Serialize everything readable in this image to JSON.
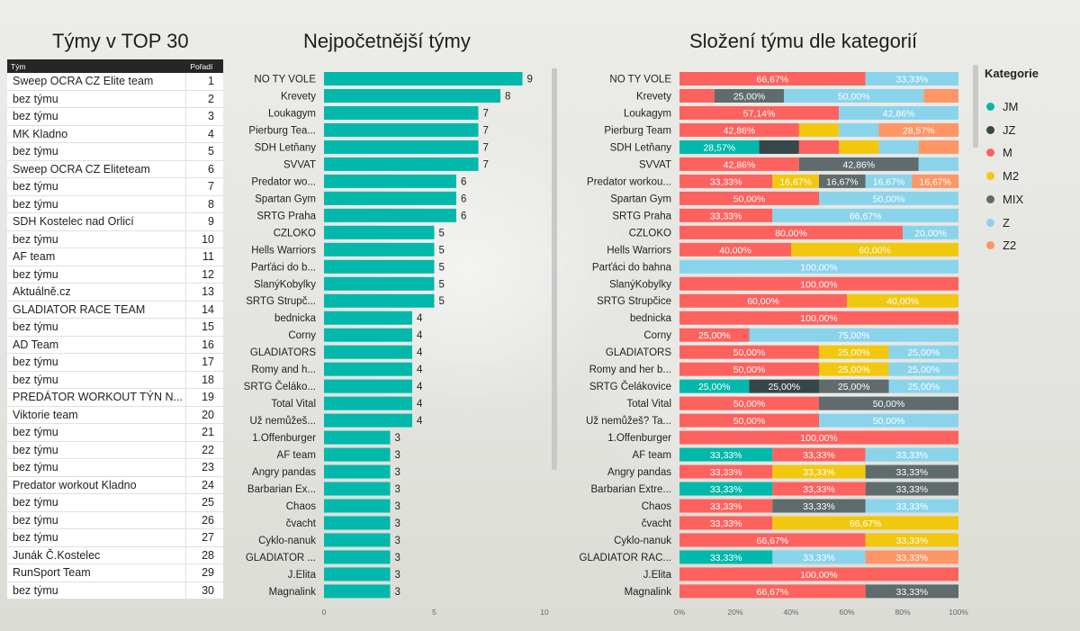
{
  "titles": {
    "table": "Týmy v TOP 30",
    "bar": "Nejpočetnější týmy",
    "stacked": "Složení týmu dle kategorií"
  },
  "table": {
    "col_team": "Tým",
    "col_rank": "Pořadí",
    "rows": [
      {
        "team": "Sweep OCRA CZ Elite team",
        "rank": "1"
      },
      {
        "team": "bez týmu",
        "rank": "2"
      },
      {
        "team": "bez týmu",
        "rank": "3"
      },
      {
        "team": "MK Kladno",
        "rank": "4"
      },
      {
        "team": "bez týmu",
        "rank": "5"
      },
      {
        "team": "Sweep OCRA CZ Eliteteam",
        "rank": "6"
      },
      {
        "team": "bez týmu",
        "rank": "7"
      },
      {
        "team": "bez týmu",
        "rank": "8"
      },
      {
        "team": "SDH Kostelec nad Orlicí",
        "rank": "9"
      },
      {
        "team": "bez týmu",
        "rank": "10"
      },
      {
        "team": "AF team",
        "rank": "11"
      },
      {
        "team": "bez týmu",
        "rank": "12"
      },
      {
        "team": "Aktuálně.cz",
        "rank": "13"
      },
      {
        "team": "GLADIATOR RACE TEAM",
        "rank": "14"
      },
      {
        "team": "bez týmu",
        "rank": "15"
      },
      {
        "team": "AD Team",
        "rank": "16"
      },
      {
        "team": "bez týmu",
        "rank": "17"
      },
      {
        "team": "bez týmu",
        "rank": "18"
      },
      {
        "team": "PREDÁTOR WORKOUT TÝN N...",
        "rank": "19"
      },
      {
        "team": "Viktorie team",
        "rank": "20"
      },
      {
        "team": "bez týmu",
        "rank": "21"
      },
      {
        "team": "bez týmu",
        "rank": "22"
      },
      {
        "team": "bez týmu",
        "rank": "23"
      },
      {
        "team": "Predator workout Kladno",
        "rank": "24"
      },
      {
        "team": "bez týmu",
        "rank": "25"
      },
      {
        "team": "bez týmu",
        "rank": "26"
      },
      {
        "team": "bez týmu",
        "rank": "27"
      },
      {
        "team": "Junák Č.Kostelec",
        "rank": "28"
      },
      {
        "team": "RunSport Team",
        "rank": "29"
      },
      {
        "team": "bez týmu",
        "rank": "30"
      }
    ]
  },
  "colors": {
    "JM": "#01B8AA",
    "JZ": "#374649",
    "M": "#FD625E",
    "M2": "#F2C80F",
    "MIX": "#5F6B6D",
    "Z": "#8AD4EB",
    "Z2": "#FE9666",
    "bar": "#01B8AA"
  },
  "chart_data": [
    {
      "type": "bar",
      "orientation": "horizontal",
      "title": "Nejpočetnější týmy",
      "categories": [
        "NO TY VOLE",
        "Krevety",
        "Loukagym",
        "Pierburg Tea...",
        "SDH Letňany",
        "SVVAT",
        "Predator wo...",
        "Spartan Gym",
        "SRTG Praha",
        "CZLOKO",
        "Hells Warriors",
        "Parťáci do b...",
        "SlanýKobylky",
        "SRTG Strupč...",
        "bednicka",
        "Corny",
        "GLADIATORS",
        "Romy and h...",
        "SRTG Čeláko...",
        "Total Vital",
        "Už nemůžeš...",
        "1.Offenburger",
        "AF team",
        "Angry pandas",
        "Barbarian Ex...",
        "Chaos",
        "čvacht",
        "Cyklo-nanuk",
        "GLADIATOR ...",
        "J.Elita",
        "Magnalink"
      ],
      "values": [
        9,
        8,
        7,
        7,
        7,
        7,
        6,
        6,
        6,
        5,
        5,
        5,
        5,
        5,
        4,
        4,
        4,
        4,
        4,
        4,
        4,
        3,
        3,
        3,
        3,
        3,
        3,
        3,
        3,
        3,
        3
      ],
      "xlim": [
        0,
        10
      ],
      "xticks": [
        "0",
        "5",
        "10"
      ]
    },
    {
      "type": "bar",
      "orientation": "horizontal-stacked-100",
      "title": "Složení týmu dle kategorií",
      "legend_title": "Kategorie",
      "legend": [
        "JM",
        "JZ",
        "M",
        "M2",
        "MIX",
        "Z",
        "Z2"
      ],
      "xticks": [
        "0%",
        "20%",
        "40%",
        "60%",
        "80%",
        "100%"
      ],
      "categories": [
        "NO TY VOLE",
        "Krevety",
        "Loukagym",
        "Pierburg Team",
        "SDH Letňany",
        "SVVAT",
        "Predator workou...",
        "Spartan Gym",
        "SRTG Praha",
        "CZLOKO",
        "Hells Warriors",
        "Parťáci do bahna",
        "SlanýKobylky",
        "SRTG Strupčice",
        "bednicka",
        "Corny",
        "GLADIATORS",
        "Romy and her b...",
        "SRTG Čelákovice",
        "Total Vital",
        "Už nemůžeš? Ta...",
        "1.Offenburger",
        "AF team",
        "Angry pandas",
        "Barbarian Extre...",
        "Chaos",
        "čvacht",
        "Cyklo-nanuk",
        "GLADIATOR RAC...",
        "J.Elita",
        "Magnalink"
      ],
      "rows": [
        [
          {
            "c": "M",
            "v": 66.67,
            "l": "66,67%"
          },
          {
            "c": "Z",
            "v": 33.33,
            "l": "33,33%"
          }
        ],
        [
          {
            "c": "M",
            "v": 12.5,
            "l": ""
          },
          {
            "c": "MIX",
            "v": 25,
            "l": "25,00%"
          },
          {
            "c": "Z",
            "v": 50,
            "l": "50,00%"
          },
          {
            "c": "Z2",
            "v": 12.5,
            "l": ""
          }
        ],
        [
          {
            "c": "M",
            "v": 57.14,
            "l": "57,14%"
          },
          {
            "c": "Z",
            "v": 42.86,
            "l": "42,86%"
          }
        ],
        [
          {
            "c": "M",
            "v": 42.86,
            "l": "42,86%"
          },
          {
            "c": "M2",
            "v": 14.29,
            "l": ""
          },
          {
            "c": "Z",
            "v": 14.29,
            "l": ""
          },
          {
            "c": "Z2",
            "v": 28.57,
            "l": "28,57%"
          }
        ],
        [
          {
            "c": "JM",
            "v": 28.57,
            "l": "28,57%"
          },
          {
            "c": "JZ",
            "v": 14.29,
            "l": ""
          },
          {
            "c": "M",
            "v": 14.29,
            "l": ""
          },
          {
            "c": "M2",
            "v": 14.29,
            "l": ""
          },
          {
            "c": "Z",
            "v": 14.29,
            "l": ""
          },
          {
            "c": "Z2",
            "v": 14.29,
            "l": ""
          }
        ],
        [
          {
            "c": "M",
            "v": 42.86,
            "l": "42,86%"
          },
          {
            "c": "MIX",
            "v": 42.86,
            "l": "42,86%"
          },
          {
            "c": "Z",
            "v": 14.29,
            "l": ""
          }
        ],
        [
          {
            "c": "M",
            "v": 33.33,
            "l": "33,33%"
          },
          {
            "c": "M2",
            "v": 16.67,
            "l": "16,67%"
          },
          {
            "c": "MIX",
            "v": 16.67,
            "l": "16,67%"
          },
          {
            "c": "Z",
            "v": 16.67,
            "l": "16,67%"
          },
          {
            "c": "Z2",
            "v": 16.67,
            "l": "16,67%"
          }
        ],
        [
          {
            "c": "M",
            "v": 50,
            "l": "50,00%"
          },
          {
            "c": "Z",
            "v": 50,
            "l": "50,00%"
          }
        ],
        [
          {
            "c": "M",
            "v": 33.33,
            "l": "33,33%"
          },
          {
            "c": "Z",
            "v": 66.67,
            "l": "66,67%"
          }
        ],
        [
          {
            "c": "M",
            "v": 80,
            "l": "80,00%"
          },
          {
            "c": "Z",
            "v": 20,
            "l": "20,00%"
          }
        ],
        [
          {
            "c": "M",
            "v": 40,
            "l": "40,00%"
          },
          {
            "c": "M2",
            "v": 60,
            "l": "60,00%"
          }
        ],
        [
          {
            "c": "Z",
            "v": 100,
            "l": "100,00%"
          }
        ],
        [
          {
            "c": "M",
            "v": 100,
            "l": "100,00%"
          }
        ],
        [
          {
            "c": "M",
            "v": 60,
            "l": "60,00%"
          },
          {
            "c": "M2",
            "v": 40,
            "l": "40,00%"
          }
        ],
        [
          {
            "c": "M",
            "v": 100,
            "l": "100,00%"
          }
        ],
        [
          {
            "c": "M",
            "v": 25,
            "l": "25,00%"
          },
          {
            "c": "Z",
            "v": 75,
            "l": "75,00%"
          }
        ],
        [
          {
            "c": "M",
            "v": 50,
            "l": "50,00%"
          },
          {
            "c": "M2",
            "v": 25,
            "l": "25,00%"
          },
          {
            "c": "Z",
            "v": 25,
            "l": "25,00%"
          }
        ],
        [
          {
            "c": "M",
            "v": 50,
            "l": "50,00%"
          },
          {
            "c": "M2",
            "v": 25,
            "l": "25,00%"
          },
          {
            "c": "Z",
            "v": 25,
            "l": "25,00%"
          }
        ],
        [
          {
            "c": "JM",
            "v": 25,
            "l": "25,00%"
          },
          {
            "c": "JZ",
            "v": 25,
            "l": "25,00%"
          },
          {
            "c": "MIX",
            "v": 25,
            "l": "25,00%"
          },
          {
            "c": "Z",
            "v": 25,
            "l": "25,00%"
          }
        ],
        [
          {
            "c": "M",
            "v": 50,
            "l": "50,00%"
          },
          {
            "c": "MIX",
            "v": 50,
            "l": "50,00%"
          }
        ],
        [
          {
            "c": "M",
            "v": 50,
            "l": "50,00%"
          },
          {
            "c": "Z",
            "v": 50,
            "l": "50,00%"
          }
        ],
        [
          {
            "c": "M",
            "v": 100,
            "l": "100,00%"
          }
        ],
        [
          {
            "c": "JM",
            "v": 33.33,
            "l": "33,33%"
          },
          {
            "c": "M",
            "v": 33.33,
            "l": "33,33%"
          },
          {
            "c": "Z",
            "v": 33.33,
            "l": "33,33%"
          }
        ],
        [
          {
            "c": "M",
            "v": 33.33,
            "l": "33,33%"
          },
          {
            "c": "M2",
            "v": 33.33,
            "l": "33,33%"
          },
          {
            "c": "MIX",
            "v": 33.33,
            "l": "33,33%"
          }
        ],
        [
          {
            "c": "JM",
            "v": 33.33,
            "l": "33,33%"
          },
          {
            "c": "M",
            "v": 33.33,
            "l": "33,33%"
          },
          {
            "c": "MIX",
            "v": 33.33,
            "l": "33,33%"
          }
        ],
        [
          {
            "c": "M",
            "v": 33.33,
            "l": "33,33%"
          },
          {
            "c": "MIX",
            "v": 33.33,
            "l": "33,33%"
          },
          {
            "c": "Z",
            "v": 33.33,
            "l": "33,33%"
          }
        ],
        [
          {
            "c": "M",
            "v": 33.33,
            "l": "33,33%"
          },
          {
            "c": "M2",
            "v": 66.67,
            "l": "66,67%"
          }
        ],
        [
          {
            "c": "M",
            "v": 66.67,
            "l": "66,67%"
          },
          {
            "c": "M2",
            "v": 33.33,
            "l": "33,33%"
          }
        ],
        [
          {
            "c": "JM",
            "v": 33.33,
            "l": "33,33%"
          },
          {
            "c": "Z",
            "v": 33.33,
            "l": "33,33%"
          },
          {
            "c": "Z2",
            "v": 33.33,
            "l": "33,33%"
          }
        ],
        [
          {
            "c": "M",
            "v": 100,
            "l": "100,00%"
          }
        ],
        [
          {
            "c": "M",
            "v": 66.67,
            "l": "66,67%"
          },
          {
            "c": "MIX",
            "v": 33.33,
            "l": "33,33%"
          }
        ]
      ]
    }
  ]
}
